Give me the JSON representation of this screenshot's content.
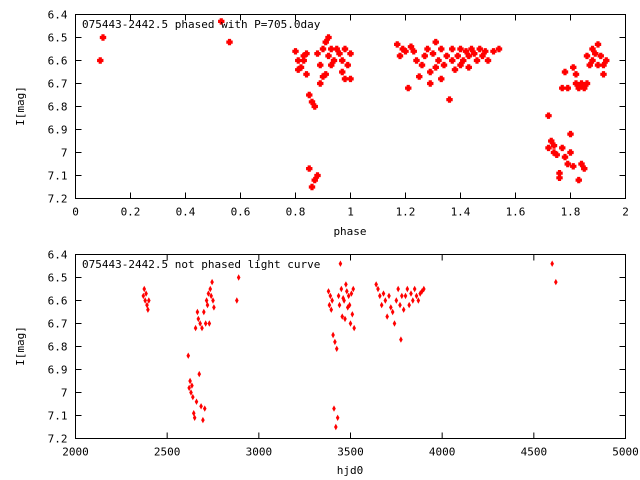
{
  "chart_data": [
    {
      "type": "scatter",
      "title": "075443-2442.5 phased with P=705.0day",
      "xlabel": "phase",
      "ylabel": "I[mag]",
      "xlim": [
        0,
        2
      ],
      "ylim": [
        6.4,
        7.2
      ],
      "y_inverted": true,
      "xticks": [
        "0",
        "0.2",
        "0.4",
        "0.6",
        "0.8",
        "1",
        "1.2",
        "1.4",
        "1.6",
        "1.8",
        "2"
      ],
      "yticks": [
        "6.4",
        "6.5",
        "6.6",
        "6.7",
        "6.8",
        "6.9",
        "7",
        "7.1",
        "7.2"
      ],
      "grid": false,
      "legend": "none",
      "marker_color": "#ff0000",
      "marker": "cross",
      "points": [
        [
          0.09,
          6.6
        ],
        [
          0.1,
          6.5
        ],
        [
          0.53,
          6.43
        ],
        [
          0.56,
          6.52
        ],
        [
          0.8,
          6.56
        ],
        [
          0.81,
          6.6
        ],
        [
          0.81,
          6.64
        ],
        [
          0.82,
          6.63
        ],
        [
          0.83,
          6.58
        ],
        [
          0.83,
          6.6
        ],
        [
          0.84,
          6.57
        ],
        [
          0.84,
          6.66
        ],
        [
          0.85,
          6.75
        ],
        [
          0.85,
          7.07
        ],
        [
          0.86,
          6.78
        ],
        [
          0.86,
          7.15
        ],
        [
          0.87,
          6.8
        ],
        [
          0.87,
          7.12
        ],
        [
          0.88,
          7.1
        ],
        [
          0.88,
          6.57
        ],
        [
          0.89,
          6.62
        ],
        [
          0.89,
          6.7
        ],
        [
          0.9,
          6.55
        ],
        [
          0.9,
          6.67
        ],
        [
          0.91,
          6.52
        ],
        [
          0.91,
          6.66
        ],
        [
          0.92,
          6.5
        ],
        [
          0.92,
          6.58
        ],
        [
          0.93,
          6.55
        ],
        [
          0.93,
          6.62
        ],
        [
          0.94,
          6.6
        ],
        [
          0.95,
          6.55
        ],
        [
          0.96,
          6.57
        ],
        [
          0.97,
          6.6
        ],
        [
          0.97,
          6.65
        ],
        [
          0.98,
          6.55
        ],
        [
          0.98,
          6.68
        ],
        [
          0.99,
          6.62
        ],
        [
          1.0,
          6.68
        ],
        [
          1.0,
          6.57
        ],
        [
          1.17,
          6.53
        ],
        [
          1.18,
          6.58
        ],
        [
          1.19,
          6.55
        ],
        [
          1.2,
          6.56
        ],
        [
          1.21,
          6.72
        ],
        [
          1.22,
          6.54
        ],
        [
          1.23,
          6.56
        ],
        [
          1.24,
          6.6
        ],
        [
          1.25,
          6.67
        ],
        [
          1.26,
          6.62
        ],
        [
          1.27,
          6.58
        ],
        [
          1.28,
          6.55
        ],
        [
          1.29,
          6.65
        ],
        [
          1.29,
          6.7
        ],
        [
          1.3,
          6.57
        ],
        [
          1.31,
          6.52
        ],
        [
          1.31,
          6.63
        ],
        [
          1.32,
          6.6
        ],
        [
          1.33,
          6.55
        ],
        [
          1.33,
          6.68
        ],
        [
          1.34,
          6.62
        ],
        [
          1.35,
          6.58
        ],
        [
          1.36,
          6.77
        ],
        [
          1.37,
          6.6
        ],
        [
          1.37,
          6.55
        ],
        [
          1.38,
          6.64
        ],
        [
          1.39,
          6.58
        ],
        [
          1.4,
          6.55
        ],
        [
          1.4,
          6.62
        ],
        [
          1.41,
          6.6
        ],
        [
          1.42,
          6.56
        ],
        [
          1.43,
          6.58
        ],
        [
          1.43,
          6.63
        ],
        [
          1.44,
          6.55
        ],
        [
          1.45,
          6.57
        ],
        [
          1.46,
          6.6
        ],
        [
          1.47,
          6.55
        ],
        [
          1.48,
          6.58
        ],
        [
          1.49,
          6.56
        ],
        [
          1.5,
          6.6
        ],
        [
          1.52,
          6.56
        ],
        [
          1.54,
          6.55
        ],
        [
          1.72,
          6.84
        ],
        [
          1.72,
          6.98
        ],
        [
          1.73,
          6.95
        ],
        [
          1.74,
          6.97
        ],
        [
          1.74,
          7.0
        ],
        [
          1.75,
          7.01
        ],
        [
          1.76,
          7.09
        ],
        [
          1.76,
          7.11
        ],
        [
          1.77,
          6.72
        ],
        [
          1.77,
          6.98
        ],
        [
          1.78,
          7.02
        ],
        [
          1.78,
          6.65
        ],
        [
          1.79,
          7.05
        ],
        [
          1.79,
          6.72
        ],
        [
          1.8,
          6.92
        ],
        [
          1.8,
          7.0
        ],
        [
          1.81,
          6.63
        ],
        [
          1.81,
          7.06
        ],
        [
          1.82,
          6.66
        ],
        [
          1.82,
          6.7
        ],
        [
          1.83,
          6.72
        ],
        [
          1.83,
          7.12
        ],
        [
          1.84,
          7.05
        ],
        [
          1.84,
          6.7
        ],
        [
          1.85,
          6.72
        ],
        [
          1.85,
          7.07
        ],
        [
          1.86,
          6.7
        ],
        [
          1.86,
          6.58
        ],
        [
          1.87,
          6.62
        ],
        [
          1.88,
          6.55
        ],
        [
          1.88,
          6.6
        ],
        [
          1.89,
          6.57
        ],
        [
          1.9,
          6.53
        ],
        [
          1.9,
          6.62
        ],
        [
          1.91,
          6.58
        ],
        [
          1.92,
          6.62
        ],
        [
          1.92,
          6.66
        ],
        [
          1.93,
          6.6
        ]
      ]
    },
    {
      "type": "scatter",
      "title": "075443-2442.5 not phased light curve",
      "xlabel": "hjd0",
      "ylabel": "I[mag]",
      "xlim": [
        2000,
        5000
      ],
      "ylim": [
        6.4,
        7.2
      ],
      "y_inverted": true,
      "xticks": [
        "2000",
        "2500",
        "3000",
        "3500",
        "4000",
        "4500",
        "5000"
      ],
      "yticks": [
        "6.4",
        "6.5",
        "6.6",
        "6.7",
        "6.8",
        "6.9",
        "7",
        "7.1",
        "7.2"
      ],
      "grid": false,
      "legend": "none",
      "marker_color": "#ff0000",
      "marker": "diamond",
      "points": [
        [
          2370,
          6.58
        ],
        [
          2375,
          6.55
        ],
        [
          2380,
          6.6
        ],
        [
          2385,
          6.57
        ],
        [
          2390,
          6.62
        ],
        [
          2395,
          6.64
        ],
        [
          2400,
          6.6
        ],
        [
          2615,
          6.84
        ],
        [
          2620,
          6.98
        ],
        [
          2625,
          6.95
        ],
        [
          2630,
          7.0
        ],
        [
          2635,
          6.97
        ],
        [
          2640,
          7.02
        ],
        [
          2645,
          7.09
        ],
        [
          2650,
          7.11
        ],
        [
          2655,
          6.72
        ],
        [
          2660,
          7.04
        ],
        [
          2665,
          6.65
        ],
        [
          2670,
          6.68
        ],
        [
          2675,
          6.92
        ],
        [
          2680,
          6.7
        ],
        [
          2685,
          7.06
        ],
        [
          2690,
          6.72
        ],
        [
          2695,
          7.12
        ],
        [
          2700,
          6.65
        ],
        [
          2705,
          7.07
        ],
        [
          2710,
          6.7
        ],
        [
          2715,
          6.6
        ],
        [
          2720,
          6.62
        ],
        [
          2725,
          6.57
        ],
        [
          2730,
          6.7
        ],
        [
          2735,
          6.55
        ],
        [
          2740,
          6.58
        ],
        [
          2745,
          6.52
        ],
        [
          2750,
          6.6
        ],
        [
          2755,
          6.63
        ],
        [
          2880,
          6.6
        ],
        [
          2890,
          6.5
        ],
        [
          3380,
          6.56
        ],
        [
          3385,
          6.62
        ],
        [
          3390,
          6.58
        ],
        [
          3395,
          6.64
        ],
        [
          3400,
          6.6
        ],
        [
          3405,
          6.75
        ],
        [
          3410,
          7.07
        ],
        [
          3415,
          6.78
        ],
        [
          3420,
          7.15
        ],
        [
          3425,
          6.81
        ],
        [
          3430,
          7.11
        ],
        [
          3435,
          6.58
        ],
        [
          3440,
          6.62
        ],
        [
          3445,
          6.44
        ],
        [
          3450,
          6.55
        ],
        [
          3455,
          6.67
        ],
        [
          3460,
          6.59
        ],
        [
          3465,
          6.6
        ],
        [
          3470,
          6.68
        ],
        [
          3475,
          6.53
        ],
        [
          3480,
          6.56
        ],
        [
          3485,
          6.63
        ],
        [
          3490,
          6.58
        ],
        [
          3495,
          6.62
        ],
        [
          3500,
          6.7
        ],
        [
          3505,
          6.57
        ],
        [
          3510,
          6.66
        ],
        [
          3515,
          6.55
        ],
        [
          3520,
          6.72
        ],
        [
          3640,
          6.53
        ],
        [
          3650,
          6.55
        ],
        [
          3660,
          6.58
        ],
        [
          3670,
          6.62
        ],
        [
          3680,
          6.57
        ],
        [
          3690,
          6.6
        ],
        [
          3700,
          6.67
        ],
        [
          3710,
          6.58
        ],
        [
          3720,
          6.63
        ],
        [
          3730,
          6.65
        ],
        [
          3740,
          6.7
        ],
        [
          3750,
          6.6
        ],
        [
          3760,
          6.55
        ],
        [
          3770,
          6.62
        ],
        [
          3775,
          6.77
        ],
        [
          3780,
          6.58
        ],
        [
          3790,
          6.64
        ],
        [
          3800,
          6.58
        ],
        [
          3810,
          6.55
        ],
        [
          3820,
          6.62
        ],
        [
          3830,
          6.57
        ],
        [
          3840,
          6.6
        ],
        [
          3850,
          6.55
        ],
        [
          3860,
          6.58
        ],
        [
          3870,
          6.6
        ],
        [
          3880,
          6.57
        ],
        [
          3890,
          6.56
        ],
        [
          3900,
          6.55
        ],
        [
          4600,
          6.44
        ],
        [
          4620,
          6.52
        ]
      ]
    }
  ]
}
